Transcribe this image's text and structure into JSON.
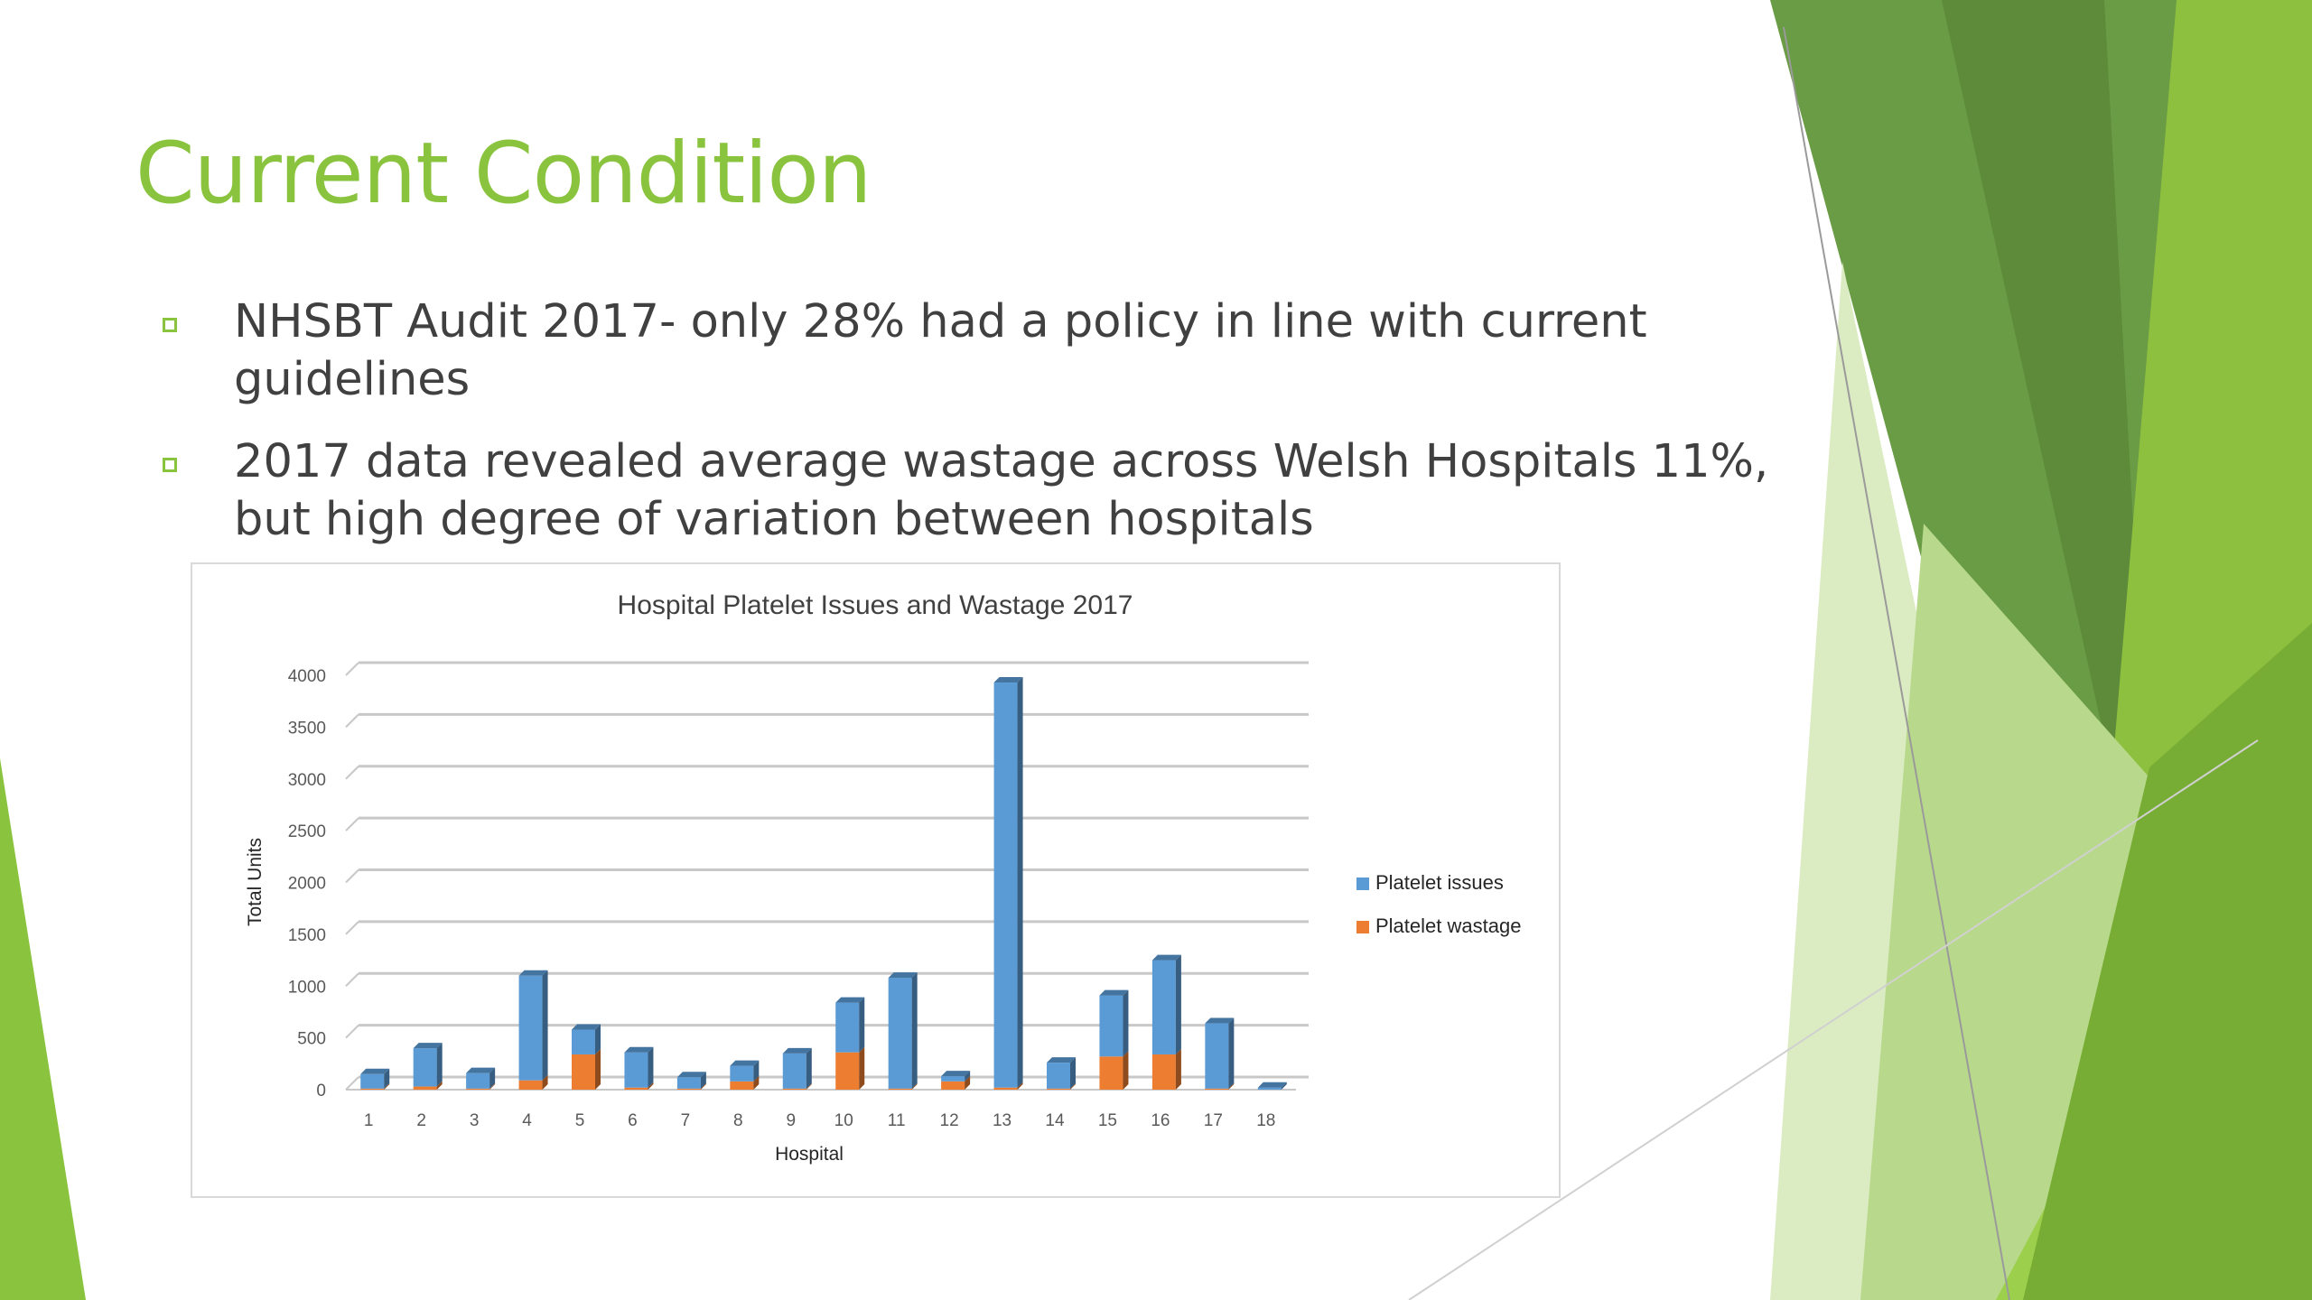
{
  "slide": {
    "title": "Current Condition",
    "bullets": [
      "NHSBT Audit 2017- only 28% had a policy in line with current guidelines",
      "2017 data revealed average wastage across Welsh Hospitals 11%, but high degree of variation between hospitals"
    ]
  },
  "theme": {
    "accent": "#8ac43f",
    "dark_green": "#5a8f2b",
    "light_green": "#c5e09b",
    "text": "#404040"
  },
  "chart_data": {
    "type": "bar",
    "stacked": true,
    "three_d": true,
    "title": "Hospital Platelet Issues and Wastage 2017",
    "xlabel": "Hospital",
    "ylabel": "Total Units",
    "categories": [
      "1",
      "2",
      "3",
      "4",
      "5",
      "6",
      "7",
      "8",
      "9",
      "10",
      "11",
      "12",
      "13",
      "14",
      "15",
      "16",
      "17",
      "18"
    ],
    "series": [
      {
        "name": "Platelet wastage",
        "color": "#ed7d31",
        "values": [
          10,
          30,
          10,
          90,
          340,
          20,
          10,
          80,
          10,
          360,
          10,
          80,
          20,
          10,
          320,
          340,
          10,
          0
        ]
      },
      {
        "name": "Platelet issues",
        "color": "#5b9bd5",
        "values": [
          140,
          370,
          150,
          1010,
          240,
          340,
          110,
          150,
          340,
          480,
          1070,
          50,
          3910,
          250,
          590,
          910,
          630,
          20
        ]
      }
    ],
    "ylim": [
      0,
      4000
    ],
    "yticks": [
      0,
      500,
      1000,
      1500,
      2000,
      2500,
      3000,
      3500,
      4000
    ],
    "legend_position": "right",
    "legend": [
      "Platelet issues",
      "Platelet wastage"
    ],
    "grid": true
  }
}
